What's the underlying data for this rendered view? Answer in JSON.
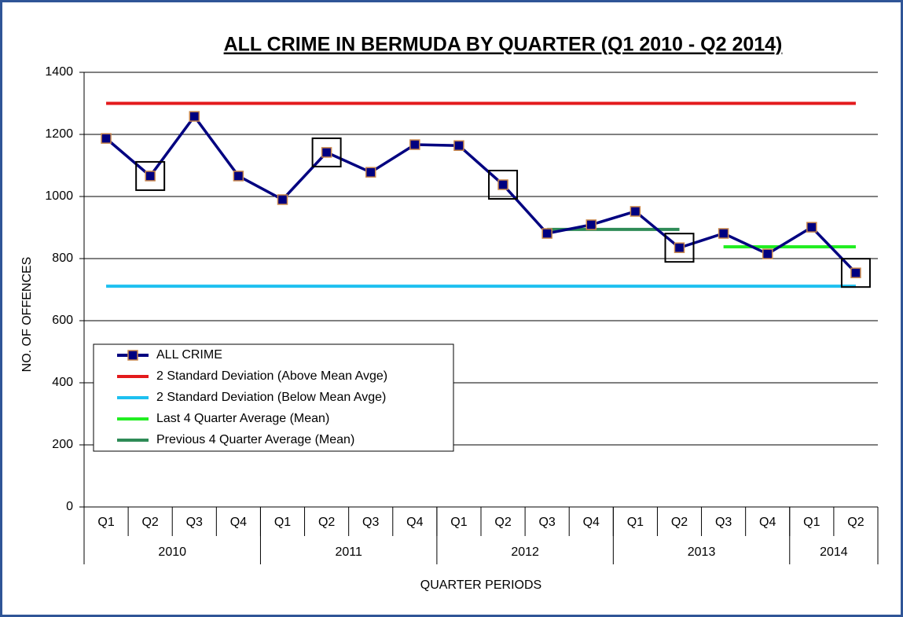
{
  "chart_data": {
    "type": "line",
    "title": "ALL CRIME IN BERMUDA BY QUARTER (Q1 2010 - Q2 2014)",
    "x_label": "QUARTER PERIODS",
    "y_label": "NO. OF OFFENCES",
    "categories": [
      "Q1",
      "Q2",
      "Q3",
      "Q4",
      "Q1",
      "Q2",
      "Q3",
      "Q4",
      "Q1",
      "Q2",
      "Q3",
      "Q4",
      "Q1",
      "Q2",
      "Q3",
      "Q4",
      "Q1",
      "Q2"
    ],
    "x_groups": [
      {
        "name": "2010",
        "count": 4
      },
      {
        "name": "2011",
        "count": 4
      },
      {
        "name": "2012",
        "count": 4
      },
      {
        "name": "2013",
        "count": 4
      },
      {
        "name": "2014",
        "count": 2
      }
    ],
    "series": [
      {
        "name": "ALL CRIME",
        "color": "#000080",
        "marker": true,
        "values": [
          1187,
          1066,
          1258,
          1066,
          990,
          1142,
          1078,
          1167,
          1164,
          1038,
          881,
          909,
          952,
          835,
          881,
          815,
          901,
          754
        ]
      },
      {
        "name": "2 Standard Deviation (Above Mean Avge)",
        "color": "#e31a1c",
        "values": [
          1300,
          1300,
          1300,
          1300,
          1300,
          1300,
          1300,
          1300,
          1300,
          1300,
          1300,
          1300,
          1300,
          1300,
          1300,
          1300,
          1300,
          1300
        ]
      },
      {
        "name": "2 Standard Deviation (Below Mean Avge)",
        "color": "#1ec0f0",
        "values": [
          711,
          711,
          711,
          711,
          711,
          711,
          711,
          711,
          711,
          711,
          711,
          711,
          711,
          711,
          711,
          711,
          711,
          711
        ]
      },
      {
        "name": "Last 4 Quarter Average (Mean)",
        "color": "#22ee22",
        "values": [
          null,
          null,
          null,
          null,
          null,
          null,
          null,
          null,
          null,
          null,
          null,
          null,
          null,
          null,
          838,
          838,
          838,
          838
        ]
      },
      {
        "name": "Previous 4 Quarter Average (Mean)",
        "color": "#2e8b57",
        "values": [
          null,
          null,
          null,
          null,
          null,
          null,
          null,
          null,
          null,
          null,
          894,
          894,
          894,
          894,
          null,
          null,
          null,
          null
        ]
      }
    ],
    "highlighted_points": [
      1,
      5,
      9,
      13,
      17
    ],
    "ylim": [
      0,
      1400
    ],
    "yticks": [
      0,
      200,
      400,
      600,
      800,
      1000,
      1200,
      1400
    ],
    "grid": true
  }
}
